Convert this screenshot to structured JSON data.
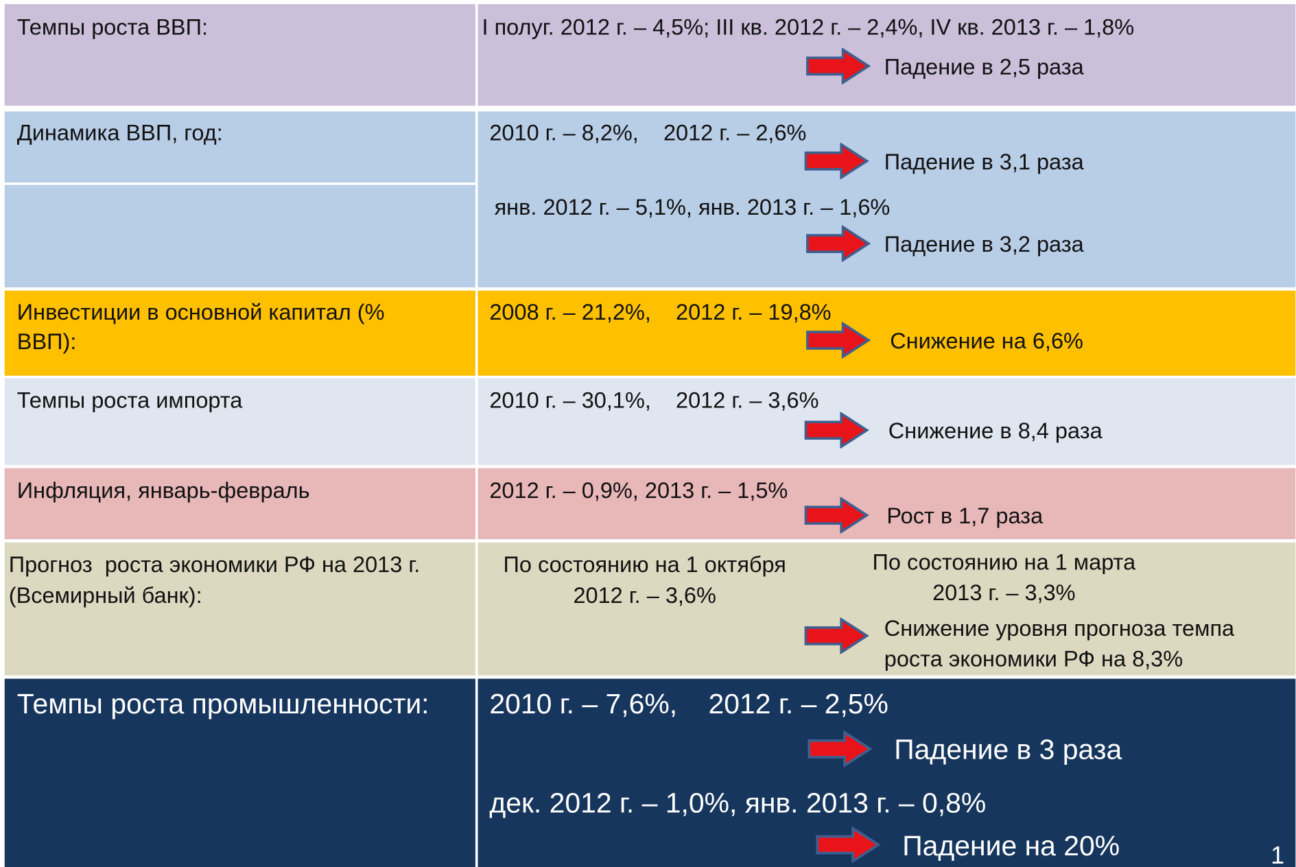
{
  "rows": [
    {
      "label": [
        "Темпы роста ВВП:"
      ],
      "text": [
        "I полуг. 2012 г. – 4,5%; III кв. 2012 г. – 2,4%, IV кв. 2013 г. – 1,8%"
      ],
      "results": [
        "Падение в 2,5 раза"
      ]
    },
    {
      "label": [
        "Динамика ВВП, год:"
      ],
      "text": [
        "2010 г. – 8,2%,    2012 г. – 2,6%",
        "янв. 2012 г. – 5,1%, янв. 2013 г. – 1,6%"
      ],
      "results": [
        "Падение в 3,1 раза",
        "Падение в 3,2 раза"
      ]
    },
    {
      "label": [
        "Инвестиции в основной капитал (%",
        "ВВП):"
      ],
      "text": [
        "2008 г. – 21,2%,    2012 г. – 19,8%"
      ],
      "results": [
        "Снижение на 6,6%"
      ]
    },
    {
      "label": [
        "Темпы роста импорта"
      ],
      "text": [
        "2010 г. – 30,1%,    2012 г. – 3,6%"
      ],
      "results": [
        "Снижение в 8,4 раза"
      ]
    },
    {
      "label": [
        "Инфляция, январь-февраль"
      ],
      "text": [
        "2012 г. – 0,9%, 2013 г. – 1,5%"
      ],
      "results": [
        "Рост в 1,7 раза"
      ]
    },
    {
      "label": [
        "Прогноз  роста экономики РФ на 2013 г.",
        "(Всемирный банк):"
      ],
      "text": [
        "По состоянию на 1 октября",
        "2012 г. – 3,6%",
        "По состоянию на 1 марта",
        "2013 г. – 3,3%"
      ],
      "results": [
        "Снижение уровня прогноза темпа",
        "роста экономики РФ на 8,3%"
      ]
    },
    {
      "label": [
        "Темпы роста промышленности:"
      ],
      "text": [
        "2010 г. – 7,6%,    2012 г. – 2,5%",
        "дек. 2012 г. – 1,0%, янв. 2013 г. – 0,8%"
      ],
      "results": [
        "Падение в 3 раза",
        "Падение на 20%"
      ]
    }
  ],
  "page_number": "1"
}
